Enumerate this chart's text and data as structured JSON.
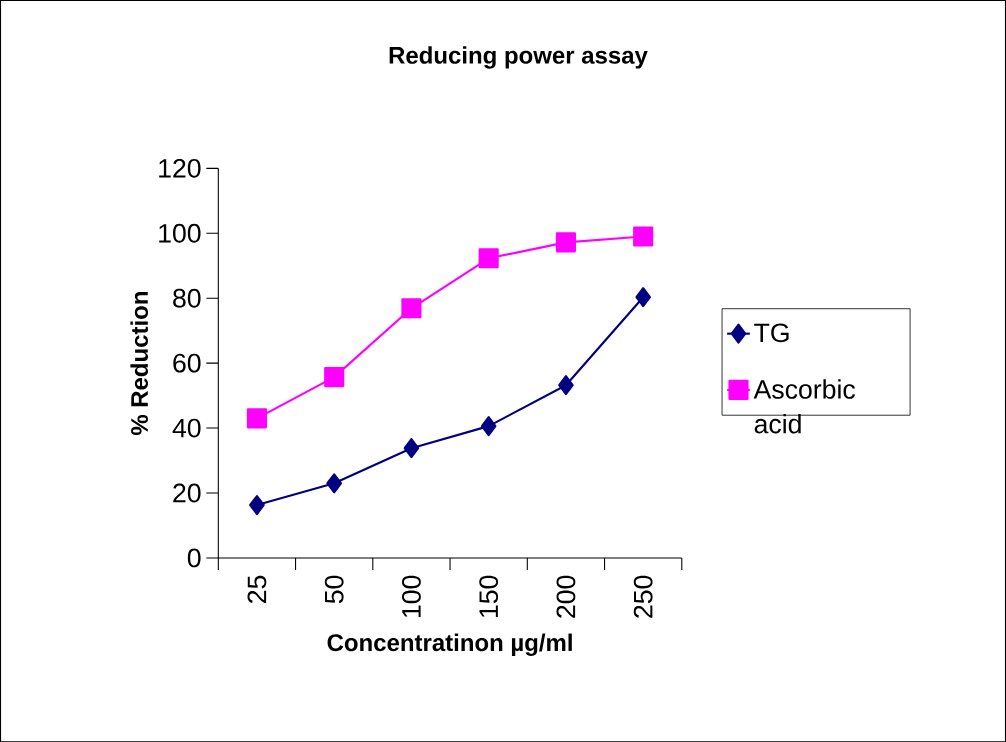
{
  "chart_data": {
    "type": "line",
    "title": "Reducing power assay",
    "xlabel": "Concentratinon µg/ml",
    "ylabel": "% Reduction",
    "categories": [
      "25",
      "50",
      "100",
      "150",
      "200",
      "250"
    ],
    "series": [
      {
        "name": "TG",
        "color": "#000080",
        "marker": "diamond",
        "values": [
          16.3,
          23,
          33.8,
          40.6,
          53.2,
          80.3
        ]
      },
      {
        "name": "Ascorbic acid",
        "color": "#ff00ff",
        "marker": "square",
        "values": [
          43,
          55.7,
          76.9,
          92.3,
          97.2,
          99
        ]
      }
    ],
    "ylim": [
      0,
      120
    ],
    "yticks": [
      0,
      20,
      40,
      60,
      80,
      100,
      120
    ],
    "legend": "right",
    "grid": false,
    "line_style": "solid"
  }
}
